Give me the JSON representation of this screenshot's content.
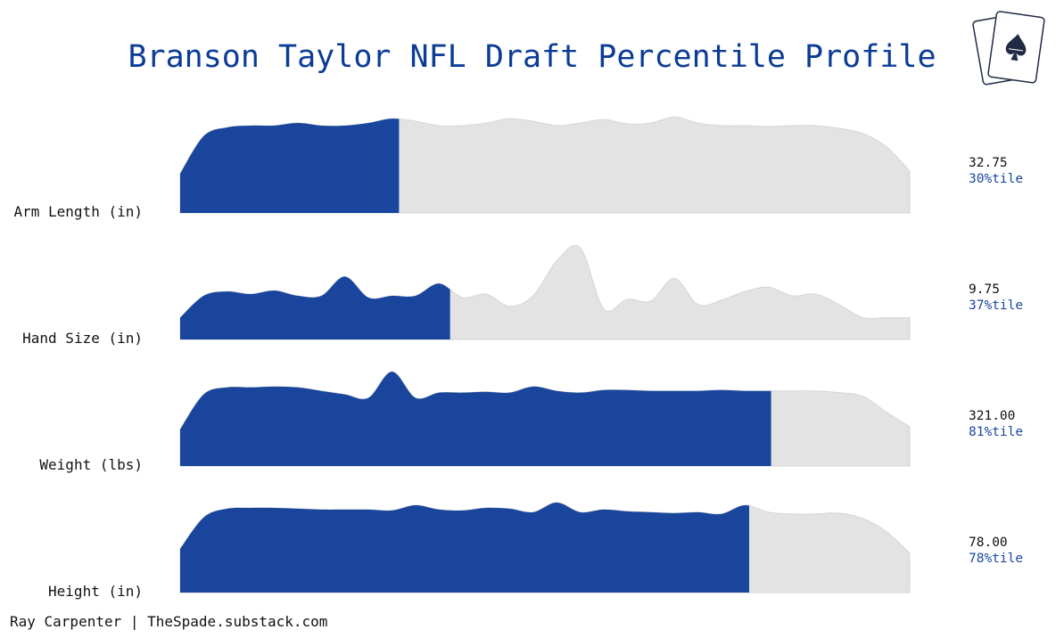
{
  "title": "Branson Taylor NFL Draft Percentile Profile",
  "footer": "Ray Carpenter | TheSpade.substack.com",
  "logo_text": "THE SPADE",
  "colors": {
    "fill": "#19469c",
    "background_density": "#e3e3e3",
    "title": "#0b3c96",
    "pct_text": "#1a47a0"
  },
  "chart_data": {
    "type": "area",
    "grid": false,
    "rows": [
      {
        "label": "Arm Length (in)",
        "value": "32.75",
        "percentile_label": "30%tile",
        "percentile": 30,
        "density": [
          0.45,
          0.88,
          0.98,
          1.0,
          1.0,
          1.03,
          1.0,
          1.0,
          1.03,
          1.08,
          1.05,
          1.0,
          1.0,
          1.03,
          1.08,
          1.05,
          1.0,
          1.03,
          1.07,
          1.02,
          1.03,
          1.1,
          1.03,
          1.0,
          1.0,
          0.99,
          1.0,
          1.0,
          0.97,
          0.91,
          0.76,
          0.48
        ]
      },
      {
        "label": "Hand Size (in)",
        "value": "9.75",
        "percentile_label": "37%tile",
        "percentile": 37,
        "density": [
          0.25,
          0.5,
          0.55,
          0.52,
          0.56,
          0.5,
          0.5,
          0.72,
          0.48,
          0.5,
          0.5,
          0.64,
          0.48,
          0.52,
          0.38,
          0.5,
          0.9,
          1.05,
          0.35,
          0.46,
          0.44,
          0.7,
          0.4,
          0.45,
          0.55,
          0.6,
          0.5,
          0.52,
          0.4,
          0.25,
          0.25,
          0.25
        ]
      },
      {
        "label": "Weight (lbs)",
        "value": "321.00",
        "percentile_label": "81%tile",
        "percentile": 81,
        "density": [
          0.42,
          0.82,
          0.9,
          0.9,
          0.91,
          0.9,
          0.86,
          0.82,
          0.78,
          1.08,
          0.78,
          0.84,
          0.84,
          0.85,
          0.84,
          0.91,
          0.86,
          0.84,
          0.87,
          0.87,
          0.86,
          0.86,
          0.86,
          0.87,
          0.86,
          0.86,
          0.86,
          0.86,
          0.84,
          0.8,
          0.62,
          0.45
        ]
      },
      {
        "label": "Height (in)",
        "value": "78.00",
        "percentile_label": "78%tile",
        "percentile": 78,
        "density": [
          0.5,
          0.86,
          0.96,
          0.97,
          0.97,
          0.96,
          0.95,
          0.95,
          0.95,
          0.94,
          1.0,
          0.95,
          0.94,
          0.97,
          0.96,
          0.92,
          1.03,
          0.92,
          0.95,
          0.93,
          0.92,
          0.91,
          0.92,
          0.9,
          1.0,
          0.92,
          0.9,
          0.9,
          0.91,
          0.85,
          0.7,
          0.45
        ]
      }
    ]
  }
}
